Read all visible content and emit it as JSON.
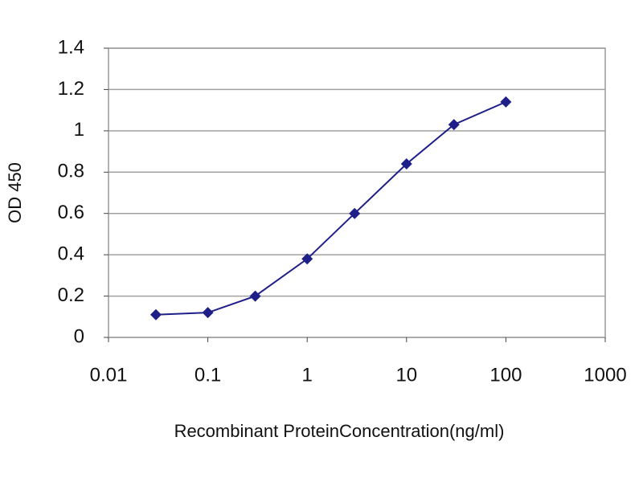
{
  "chart_data": {
    "type": "line",
    "xlabel": "Recombinant ProteinConcentration(ng/ml)",
    "ylabel": "OD 450",
    "x": [
      0.03,
      0.1,
      0.3,
      1,
      3,
      10,
      30,
      100
    ],
    "series": [
      {
        "color": "#1f1f8a",
        "values": [
          0.11,
          0.12,
          0.2,
          0.38,
          0.6,
          0.84,
          1.03,
          1.14
        ]
      }
    ],
    "xscale": "log",
    "xlim": [
      0.01,
      1000
    ],
    "xticks": [
      0.01,
      0.1,
      1,
      10,
      100,
      1000
    ],
    "ylim": [
      0,
      1.4
    ],
    "yticks": [
      0,
      0.2,
      0.4,
      0.6,
      0.8,
      1,
      1.2,
      1.4
    ],
    "grid": true
  }
}
